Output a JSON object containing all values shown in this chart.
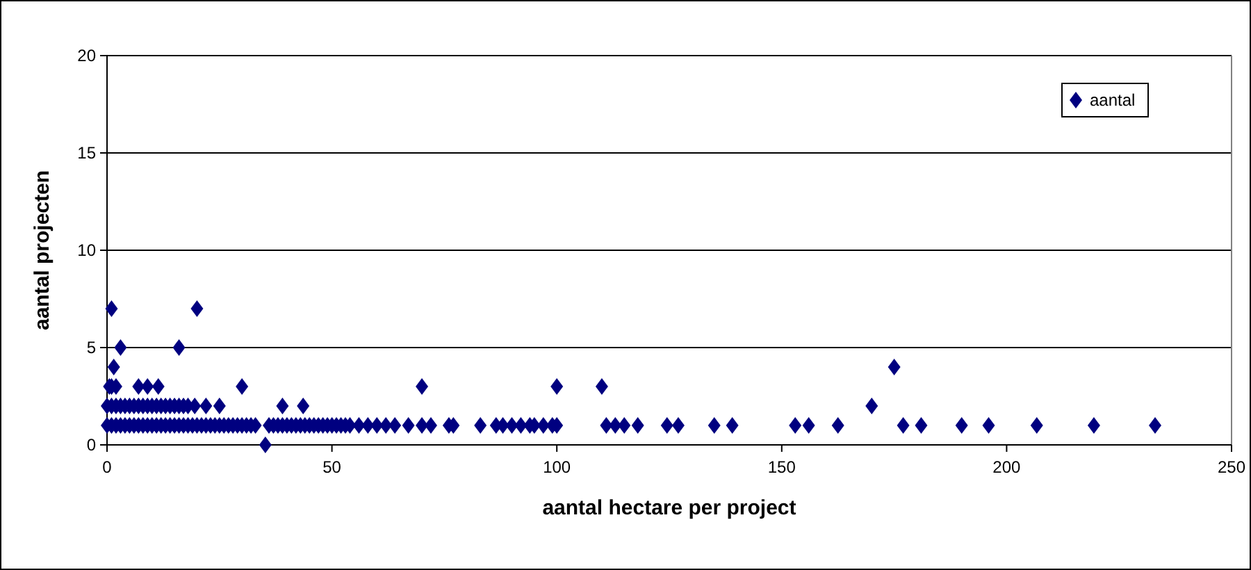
{
  "chart_data": {
    "type": "scatter",
    "xlabel": "aantal hectare per project",
    "ylabel": "aantal projecten",
    "xlim": [
      0,
      250
    ],
    "xticks": [
      0,
      50,
      100,
      150,
      200,
      250
    ],
    "ylim": [
      0,
      20
    ],
    "yticks": [
      0,
      5,
      10,
      15,
      20
    ],
    "grid": "y",
    "legend": "top right",
    "marker": "diamond",
    "series": [
      {
        "name": "aantal",
        "color": "#000080",
        "x": [
          1,
          20,
          3,
          16,
          1.5,
          175,
          0.5,
          1,
          2,
          7,
          9,
          11.4,
          30,
          70,
          100,
          110,
          0,
          1,
          2,
          3,
          4,
          5,
          6,
          7,
          8,
          9,
          10,
          11,
          12,
          13,
          14,
          15,
          16,
          17,
          18,
          19.5,
          22,
          25,
          39,
          43.6,
          170,
          35.2,
          0,
          1,
          2,
          3,
          4,
          5,
          6,
          7,
          8,
          9,
          10,
          11,
          12,
          13,
          14,
          15,
          16,
          17,
          18,
          19,
          20,
          21,
          22,
          23,
          24,
          25,
          26,
          27,
          28,
          29,
          30,
          31,
          32,
          33,
          36,
          37,
          38,
          39,
          40,
          41,
          42,
          43,
          44,
          45,
          46,
          47,
          48,
          49,
          50,
          51,
          52,
          53,
          54,
          56,
          58,
          60,
          62,
          64,
          67,
          70,
          72,
          76,
          77,
          83,
          86.5,
          88,
          90,
          92,
          94,
          95,
          97,
          99,
          100,
          111,
          113,
          115,
          118,
          124.5,
          127,
          135,
          139,
          153,
          156,
          162.5,
          177,
          181,
          190,
          196,
          206.7,
          219.4,
          233
        ],
        "values": [
          7,
          7,
          5,
          5,
          4,
          4,
          3,
          3,
          3,
          3,
          3,
          3,
          3,
          3,
          3,
          3,
          2,
          2,
          2,
          2,
          2,
          2,
          2,
          2,
          2,
          2,
          2,
          2,
          2,
          2,
          2,
          2,
          2,
          2,
          2,
          2,
          2,
          2,
          2,
          2,
          2,
          0,
          1,
          1,
          1,
          1,
          1,
          1,
          1,
          1,
          1,
          1,
          1,
          1,
          1,
          1,
          1,
          1,
          1,
          1,
          1,
          1,
          1,
          1,
          1,
          1,
          1,
          1,
          1,
          1,
          1,
          1,
          1,
          1,
          1,
          1,
          1,
          1,
          1,
          1,
          1,
          1,
          1,
          1,
          1,
          1,
          1,
          1,
          1,
          1,
          1,
          1,
          1,
          1,
          1,
          1,
          1,
          1,
          1,
          1,
          1,
          1,
          1,
          1,
          1,
          1,
          1,
          1,
          1,
          1,
          1,
          1,
          1,
          1,
          1,
          1,
          1,
          1,
          1,
          1,
          1,
          1,
          1,
          1,
          1,
          1,
          1,
          1,
          1,
          1,
          1,
          1,
          1
        ]
      }
    ]
  }
}
